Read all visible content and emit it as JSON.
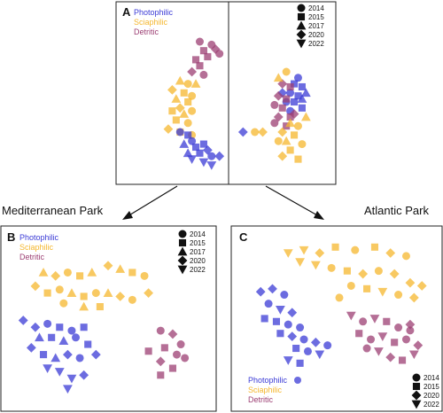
{
  "colors": {
    "Photophilic": "#3b3bd6",
    "Sciaphilic": "#f5b72e",
    "Detritic": "#9c3f73"
  },
  "chart_data": [
    {
      "id": "A",
      "type": "scatter",
      "panel_label": "A",
      "xlim": [
        0,
        100
      ],
      "ylim": [
        0,
        100
      ],
      "habitat_legend": [
        "Photophilic",
        "Sciaphilic",
        "Detritic"
      ],
      "year_legend": [
        "2014",
        "2015",
        "2017",
        "2020",
        "2022"
      ],
      "year_shapes": [
        "circle",
        "square",
        "triangle",
        "diamond",
        "triangle-down"
      ],
      "series": [
        {
          "name": "Detritic",
          "points": [
            [
              34,
              90,
              0
            ],
            [
              40,
              88,
              0
            ],
            [
              42,
              85,
              3
            ],
            [
              36,
              84,
              1
            ],
            [
              38,
              80,
              1
            ],
            [
              32,
              78,
              1
            ],
            [
              44,
              82,
              0
            ],
            [
              34,
              74,
              1
            ],
            [
              30,
              70,
              3
            ],
            [
              36,
              68,
              0
            ]
          ]
        },
        {
          "name": "Sciaphilic",
          "points": [
            [
              24,
              64,
              2
            ],
            [
              28,
              62,
              0
            ],
            [
              32,
              62,
              2
            ],
            [
              20,
              58,
              3
            ],
            [
              26,
              56,
              1
            ],
            [
              30,
              54,
              0
            ],
            [
              22,
              52,
              2
            ],
            [
              28,
              50,
              1
            ],
            [
              24,
              46,
              3
            ],
            [
              30,
              44,
              0
            ],
            [
              20,
              44,
              1
            ],
            [
              26,
              42,
              2
            ],
            [
              22,
              38,
              1
            ],
            [
              28,
              36,
              0
            ],
            [
              18,
              32,
              3
            ],
            [
              24,
              30,
              1
            ],
            [
              30,
              28,
              0
            ]
          ]
        },
        {
          "name": "Photophilic",
          "points": [
            [
              24,
              30,
              0
            ],
            [
              28,
              28,
              1
            ],
            [
              30,
              24,
              0
            ],
            [
              26,
              22,
              2
            ],
            [
              32,
              20,
              1
            ],
            [
              36,
              22,
              1
            ],
            [
              38,
              18,
              3
            ],
            [
              34,
              16,
              1
            ],
            [
              28,
              16,
              2
            ],
            [
              40,
              14,
              0
            ],
            [
              30,
              12,
              4
            ],
            [
              36,
              10,
              4
            ],
            [
              40,
              8,
              4
            ],
            [
              44,
              14,
              3
            ]
          ]
        },
        {
          "name": "Photophilic",
          "points": [
            [
              84,
              66,
              0
            ],
            [
              82,
              62,
              1
            ],
            [
              86,
              60,
              1
            ],
            [
              80,
              56,
              0
            ],
            [
              84,
              54,
              1
            ],
            [
              86,
              52,
              2
            ],
            [
              82,
              50,
              1
            ],
            [
              78,
              50,
              0
            ],
            [
              86,
              46,
              1
            ],
            [
              80,
              44,
              0
            ],
            [
              76,
              56,
              3
            ],
            [
              88,
              56,
              2
            ],
            [
              56,
              30,
              3
            ]
          ]
        },
        {
          "name": "Detritic",
          "points": [
            [
              76,
              62,
              3
            ],
            [
              80,
              60,
              1
            ],
            [
              74,
              54,
              3
            ],
            [
              78,
              52,
              1
            ],
            [
              72,
              48,
              0
            ],
            [
              76,
              46,
              1
            ],
            [
              74,
              40,
              3
            ],
            [
              80,
              40,
              1
            ],
            [
              72,
              36,
              0
            ],
            [
              78,
              34,
              1
            ],
            [
              82,
              42,
              3
            ]
          ]
        },
        {
          "name": "Sciaphilic",
          "points": [
            [
              78,
              70,
              0
            ],
            [
              74,
              66,
              2
            ],
            [
              80,
              36,
              2
            ],
            [
              84,
              34,
              0
            ],
            [
              76,
              30,
              3
            ],
            [
              82,
              28,
              1
            ],
            [
              78,
              24,
              2
            ],
            [
              86,
              22,
              0
            ],
            [
              80,
              18,
              1
            ],
            [
              76,
              14,
              3
            ],
            [
              84,
              12,
              1
            ],
            [
              88,
              40,
              2
            ],
            [
              74,
              24,
              0
            ],
            [
              62,
              30,
              0
            ],
            [
              66,
              30,
              3
            ]
          ]
        }
      ]
    },
    {
      "id": "B",
      "type": "scatter",
      "panel_label": "B",
      "xlim": [
        0,
        100
      ],
      "ylim": [
        0,
        100
      ],
      "habitat_legend": [
        "Photophilic",
        "Sciaphilic",
        "Detritic"
      ],
      "year_legend": [
        "2014",
        "2015",
        "2017",
        "2020",
        "2022"
      ],
      "year_shapes": [
        "circle",
        "square",
        "triangle",
        "diamond",
        "triangle-down"
      ],
      "series": [
        {
          "name": "Sciaphilic",
          "points": [
            [
              18,
              78,
              2
            ],
            [
              24,
              76,
              3
            ],
            [
              30,
              78,
              0
            ],
            [
              36,
              76,
              1
            ],
            [
              42,
              78,
              2
            ],
            [
              50,
              82,
              3
            ],
            [
              56,
              80,
              2
            ],
            [
              62,
              78,
              1
            ],
            [
              68,
              76,
              0
            ],
            [
              14,
              70,
              3
            ],
            [
              20,
              66,
              1
            ],
            [
              26,
              68,
              0
            ],
            [
              32,
              66,
              2
            ],
            [
              38,
              64,
              1
            ],
            [
              44,
              66,
              0
            ],
            [
              50,
              66,
              2
            ],
            [
              56,
              64,
              3
            ],
            [
              62,
              62,
              0
            ],
            [
              70,
              66,
              3
            ],
            [
              46,
              58,
              1
            ],
            [
              38,
              58,
              2
            ],
            [
              28,
              60,
              0
            ]
          ]
        },
        {
          "name": "Photophilic",
          "points": [
            [
              8,
              50,
              3
            ],
            [
              14,
              46,
              3
            ],
            [
              20,
              48,
              0
            ],
            [
              26,
              46,
              1
            ],
            [
              32,
              44,
              0
            ],
            [
              38,
              46,
              1
            ],
            [
              16,
              40,
              2
            ],
            [
              22,
              40,
              1
            ],
            [
              28,
              38,
              2
            ],
            [
              34,
              40,
              0
            ],
            [
              40,
              36,
              1
            ],
            [
              12,
              34,
              3
            ],
            [
              18,
              30,
              1
            ],
            [
              24,
              28,
              2
            ],
            [
              30,
              30,
              3
            ],
            [
              36,
              28,
              0
            ],
            [
              20,
              22,
              4
            ],
            [
              26,
              20,
              4
            ],
            [
              32,
              16,
              4
            ],
            [
              38,
              18,
              3
            ],
            [
              30,
              10,
              4
            ],
            [
              44,
              30,
              3
            ]
          ]
        },
        {
          "name": "Detritic",
          "points": [
            [
              76,
              44,
              0
            ],
            [
              82,
              42,
              3
            ],
            [
              86,
              36,
              0
            ],
            [
              78,
              34,
              1
            ],
            [
              84,
              30,
              0
            ],
            [
              70,
              32,
              1
            ],
            [
              76,
              26,
              3
            ],
            [
              82,
              22,
              1
            ],
            [
              76,
              18,
              1
            ],
            [
              88,
              28,
              0
            ]
          ]
        }
      ]
    },
    {
      "id": "C",
      "type": "scatter",
      "panel_label": "C",
      "xlim": [
        0,
        100
      ],
      "ylim": [
        0,
        100
      ],
      "habitat_legend": [
        "Photophilic",
        "Sciaphilic",
        "Detritic"
      ],
      "year_legend": [
        "2014",
        "2015",
        "2020",
        "2022"
      ],
      "year_shapes": [
        "circle",
        "square",
        "diamond",
        "triangle-down"
      ],
      "series": [
        {
          "name": "Sciaphilic",
          "points": [
            [
              24,
              86,
              3
            ],
            [
              32,
              88,
              3
            ],
            [
              40,
              86,
              2
            ],
            [
              48,
              90,
              1
            ],
            [
              58,
              88,
              0
            ],
            [
              68,
              90,
              1
            ],
            [
              76,
              86,
              2
            ],
            [
              84,
              84,
              0
            ],
            [
              30,
              80,
              3
            ],
            [
              38,
              78,
              3
            ],
            [
              46,
              76,
              0
            ],
            [
              54,
              74,
              1
            ],
            [
              62,
              72,
              2
            ],
            [
              70,
              74,
              0
            ],
            [
              78,
              72,
              2
            ],
            [
              86,
              66,
              2
            ],
            [
              92,
              64,
              2
            ],
            [
              56,
              64,
              0
            ],
            [
              64,
              62,
              1
            ],
            [
              72,
              60,
              3
            ],
            [
              80,
              58,
              0
            ],
            [
              88,
              56,
              2
            ],
            [
              50,
              56,
              0
            ]
          ]
        },
        {
          "name": "Photophilic",
          "points": [
            [
              10,
              60,
              2
            ],
            [
              16,
              62,
              2
            ],
            [
              22,
              58,
              0
            ],
            [
              14,
              52,
              0
            ],
            [
              20,
              48,
              3
            ],
            [
              26,
              46,
              2
            ],
            [
              12,
              42,
              1
            ],
            [
              18,
              40,
              1
            ],
            [
              24,
              38,
              0
            ],
            [
              30,
              36,
              0
            ],
            [
              20,
              32,
              1
            ],
            [
              26,
              30,
              2
            ],
            [
              32,
              28,
              0
            ],
            [
              38,
              26,
              2
            ],
            [
              44,
              24,
              0
            ],
            [
              28,
              22,
              1
            ],
            [
              34,
              20,
              0
            ],
            [
              40,
              18,
              3
            ],
            [
              24,
              14,
              3
            ],
            [
              30,
              12,
              1
            ]
          ]
        },
        {
          "name": "Detritic",
          "points": [
            [
              56,
              44,
              3
            ],
            [
              62,
              40,
              0
            ],
            [
              68,
              42,
              3
            ],
            [
              74,
              40,
              1
            ],
            [
              80,
              36,
              0
            ],
            [
              86,
              38,
              2
            ],
            [
              60,
              32,
              1
            ],
            [
              66,
              28,
              0
            ],
            [
              72,
              30,
              3
            ],
            [
              78,
              26,
              1
            ],
            [
              84,
              28,
              0
            ],
            [
              90,
              24,
              2
            ],
            [
              70,
              20,
              3
            ],
            [
              76,
              16,
              2
            ],
            [
              82,
              14,
              1
            ],
            [
              88,
              18,
              3
            ],
            [
              64,
              22,
              0
            ],
            [
              86,
              34,
              0
            ]
          ]
        }
      ]
    }
  ],
  "panels": {
    "A": {
      "label": "A"
    },
    "B": {
      "label": "B"
    },
    "C": {
      "label": "C"
    }
  },
  "park_labels": {
    "mediterranean": "Mediterranean Park",
    "atlantic": "Atlantic Park"
  }
}
